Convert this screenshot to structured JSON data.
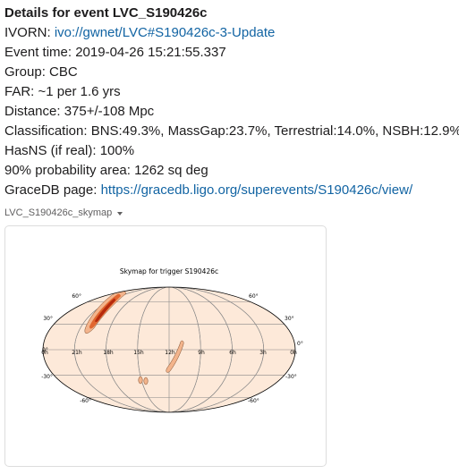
{
  "message": {
    "title": "Details for event LVC_S190426c",
    "lines": [
      {
        "label": "IVORN: ",
        "value": "ivo://gwnet/LVC#S190426c-3-Update",
        "is_link": true
      },
      {
        "label": "Event time: ",
        "value": "2019-04-26 15:21:55.337",
        "is_link": false
      },
      {
        "label": "Group: ",
        "value": "CBC",
        "is_link": false
      },
      {
        "label": "FAR: ",
        "value": "~1 per 1.6 yrs",
        "is_link": false
      },
      {
        "label": "Distance: ",
        "value": "375+/-108 Mpc",
        "is_link": false
      },
      {
        "label": "Classification: ",
        "value": "BNS:49.3%, MassGap:23.7%, Terrestrial:14.0%, NSBH:12.9%",
        "is_link": false
      },
      {
        "label": "HasNS (if real): ",
        "value": "100%",
        "is_link": false
      },
      {
        "label": "90% probability area: ",
        "value": "1262 sq deg",
        "is_link": false
      },
      {
        "label": "GraceDB page: ",
        "value": "https://gracedb.ligo.org/superevents/S190426c/view/",
        "is_link": true
      }
    ]
  },
  "attachment": {
    "name": "LVC_S190426c_skymap",
    "caret_icon": "chevron-down-icon"
  },
  "skymap": {
    "title": "Skymap for trigger S190426c",
    "lat_labels_left": [
      "60°",
      "30°",
      "0°",
      "-30°",
      "-60°"
    ],
    "lat_labels_right": [
      "60°",
      "30°",
      "0°",
      "-30°",
      "-60°"
    ],
    "ra_labels": [
      "0h",
      "21h",
      "18h",
      "15h",
      "12h",
      "9h",
      "6h",
      "3h",
      "0h"
    ],
    "colors": {
      "background": "#fde9d9",
      "low": "#f3b48c",
      "mid": "#e0662f",
      "high": "#b52a0d",
      "grid": "#888888"
    }
  }
}
